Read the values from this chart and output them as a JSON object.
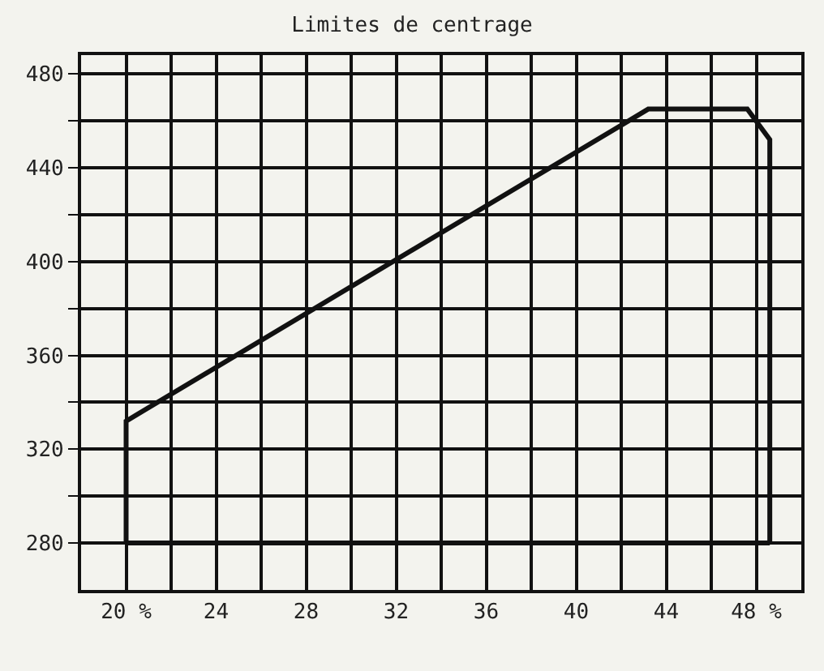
{
  "chart_data": {
    "type": "line",
    "title": "Limites de centrage",
    "series": [
      {
        "color": "#111111",
        "x": [
          20,
          20,
          43.2,
          47.6,
          48.6,
          48.6
        ],
        "values": [
          280,
          332,
          465,
          465,
          452,
          280
        ]
      },
      {
        "color": "#111111",
        "x": [
          20,
          48.6
        ],
        "values": [
          280,
          280
        ]
      }
    ],
    "xlim": [
      18,
      50
    ],
    "ylim": [
      260,
      488
    ],
    "xticks": [
      {
        "value": 20,
        "label": "20 %"
      },
      {
        "value": 22,
        "label": null
      },
      24,
      {
        "value": 26,
        "label": null
      },
      28,
      {
        "value": 30,
        "label": null
      },
      32,
      {
        "value": 34,
        "label": null
      },
      36,
      {
        "value": 38,
        "label": null
      },
      40,
      {
        "value": 42,
        "label": null
      },
      44,
      {
        "value": 46,
        "label": null
      },
      {
        "value": 48,
        "label": "48 %"
      }
    ],
    "yticks": [
      280,
      {
        "value": 300,
        "label": null
      },
      320,
      {
        "value": 340,
        "label": null
      },
      360,
      {
        "value": 380,
        "label": null
      },
      400,
      {
        "value": 420,
        "label": null
      },
      440,
      {
        "value": 460,
        "label": null
      },
      480
    ],
    "grid": true,
    "marker": "none",
    "line_style": "solid"
  }
}
